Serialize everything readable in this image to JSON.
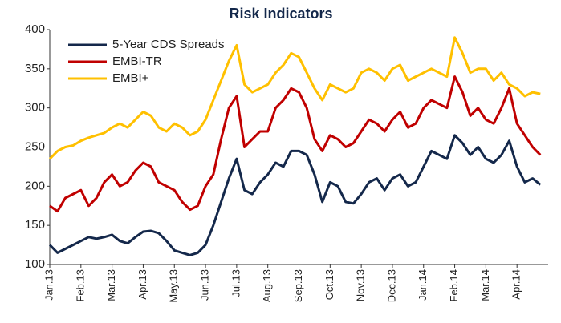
{
  "chart_data": {
    "type": "line",
    "title": "Risk Indicators",
    "categories": [
      "Jan.13",
      null,
      null,
      null,
      "Feb.13",
      null,
      null,
      null,
      "Mar.13",
      null,
      null,
      null,
      "Apr.13",
      null,
      null,
      null,
      "May.13",
      null,
      null,
      null,
      "Jun.13",
      null,
      null,
      null,
      "Jul.13",
      null,
      null,
      null,
      "Aug.13",
      null,
      null,
      null,
      "Sep.13",
      null,
      null,
      null,
      "Oct.13",
      null,
      null,
      null,
      "Nov.13",
      null,
      null,
      null,
      "Dec.13",
      null,
      null,
      null,
      "Jan.14",
      null,
      null,
      null,
      "Feb.14",
      null,
      null,
      null,
      "Mar.14",
      null,
      null,
      null,
      "Apr.14",
      null,
      null,
      null
    ],
    "series": [
      {
        "name": "5-Year CDS Spreads",
        "color": "#14284b",
        "values": [
          125,
          115,
          120,
          125,
          130,
          135,
          133,
          135,
          138,
          130,
          127,
          135,
          142,
          143,
          140,
          130,
          118,
          115,
          112,
          115,
          125,
          150,
          180,
          210,
          235,
          195,
          190,
          205,
          215,
          230,
          225,
          245,
          245,
          240,
          215,
          180,
          205,
          200,
          180,
          178,
          190,
          205,
          210,
          195,
          210,
          215,
          200,
          205,
          225,
          245,
          240,
          235,
          265,
          255,
          240,
          250,
          235,
          230,
          240,
          258,
          225,
          205,
          210,
          202
        ]
      },
      {
        "name": "EMBI-TR",
        "color": "#c00000",
        "values": [
          175,
          168,
          185,
          190,
          195,
          175,
          185,
          205,
          215,
          200,
          205,
          220,
          230,
          225,
          205,
          200,
          195,
          180,
          170,
          175,
          200,
          215,
          260,
          300,
          315,
          250,
          260,
          270,
          270,
          300,
          310,
          325,
          320,
          300,
          260,
          245,
          265,
          260,
          250,
          255,
          270,
          285,
          280,
          270,
          285,
          295,
          275,
          280,
          300,
          310,
          305,
          300,
          340,
          320,
          290,
          300,
          285,
          280,
          300,
          325,
          280,
          265,
          250,
          240
        ]
      },
      {
        "name": "EMBI+",
        "color": "#ffc000",
        "values": [
          235,
          245,
          250,
          252,
          258,
          262,
          265,
          268,
          275,
          280,
          275,
          285,
          295,
          290,
          275,
          270,
          280,
          275,
          265,
          270,
          285,
          310,
          335,
          360,
          380,
          330,
          320,
          325,
          330,
          345,
          355,
          370,
          365,
          345,
          325,
          310,
          330,
          325,
          320,
          325,
          345,
          350,
          345,
          335,
          350,
          355,
          335,
          340,
          345,
          350,
          345,
          340,
          390,
          370,
          345,
          350,
          350,
          335,
          345,
          330,
          325,
          315,
          320,
          318
        ]
      }
    ],
    "ylim": [
      100,
      400
    ],
    "yticks": [
      100,
      150,
      200,
      250,
      300,
      350,
      400
    ],
    "grid": false,
    "legend": "top-left"
  }
}
